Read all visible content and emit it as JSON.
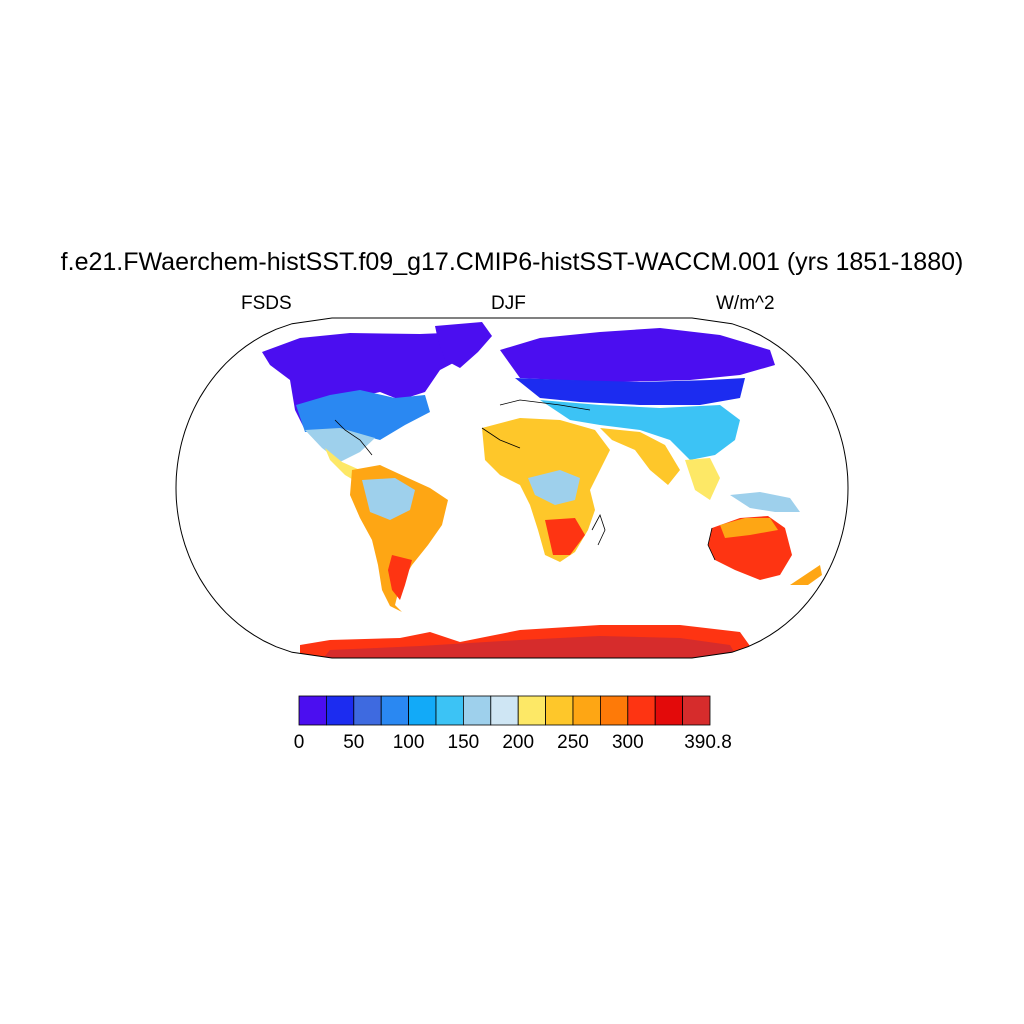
{
  "header": {
    "title": "f.e21.FWaerchem-histSST.f09_g17.CMIP6-histSST-WACCM.001 (yrs 1851-1880)",
    "variable": "FSDS",
    "season": "DJF",
    "units": "W/m^2"
  },
  "colorbar": {
    "colors": [
      "#4b0ef0",
      "#1c2cf0",
      "#3e6ae0",
      "#2a88f2",
      "#12aaf8",
      "#3cc3f5",
      "#9ed0ec",
      "#cfe6f4",
      "#fde866",
      "#fec72a",
      "#fea614",
      "#fe7a08",
      "#fe3412",
      "#e30a0a",
      "#d62c2c"
    ],
    "labels": [
      "0",
      "50",
      "100",
      "150",
      "200",
      "250",
      "300",
      "390.8"
    ],
    "label_box_index": [
      0,
      2,
      4,
      6,
      8,
      10,
      12,
      15
    ]
  },
  "map": {
    "projection": "Robinson",
    "outline_color": "#000000",
    "ocean_color": "#ffffff"
  }
}
